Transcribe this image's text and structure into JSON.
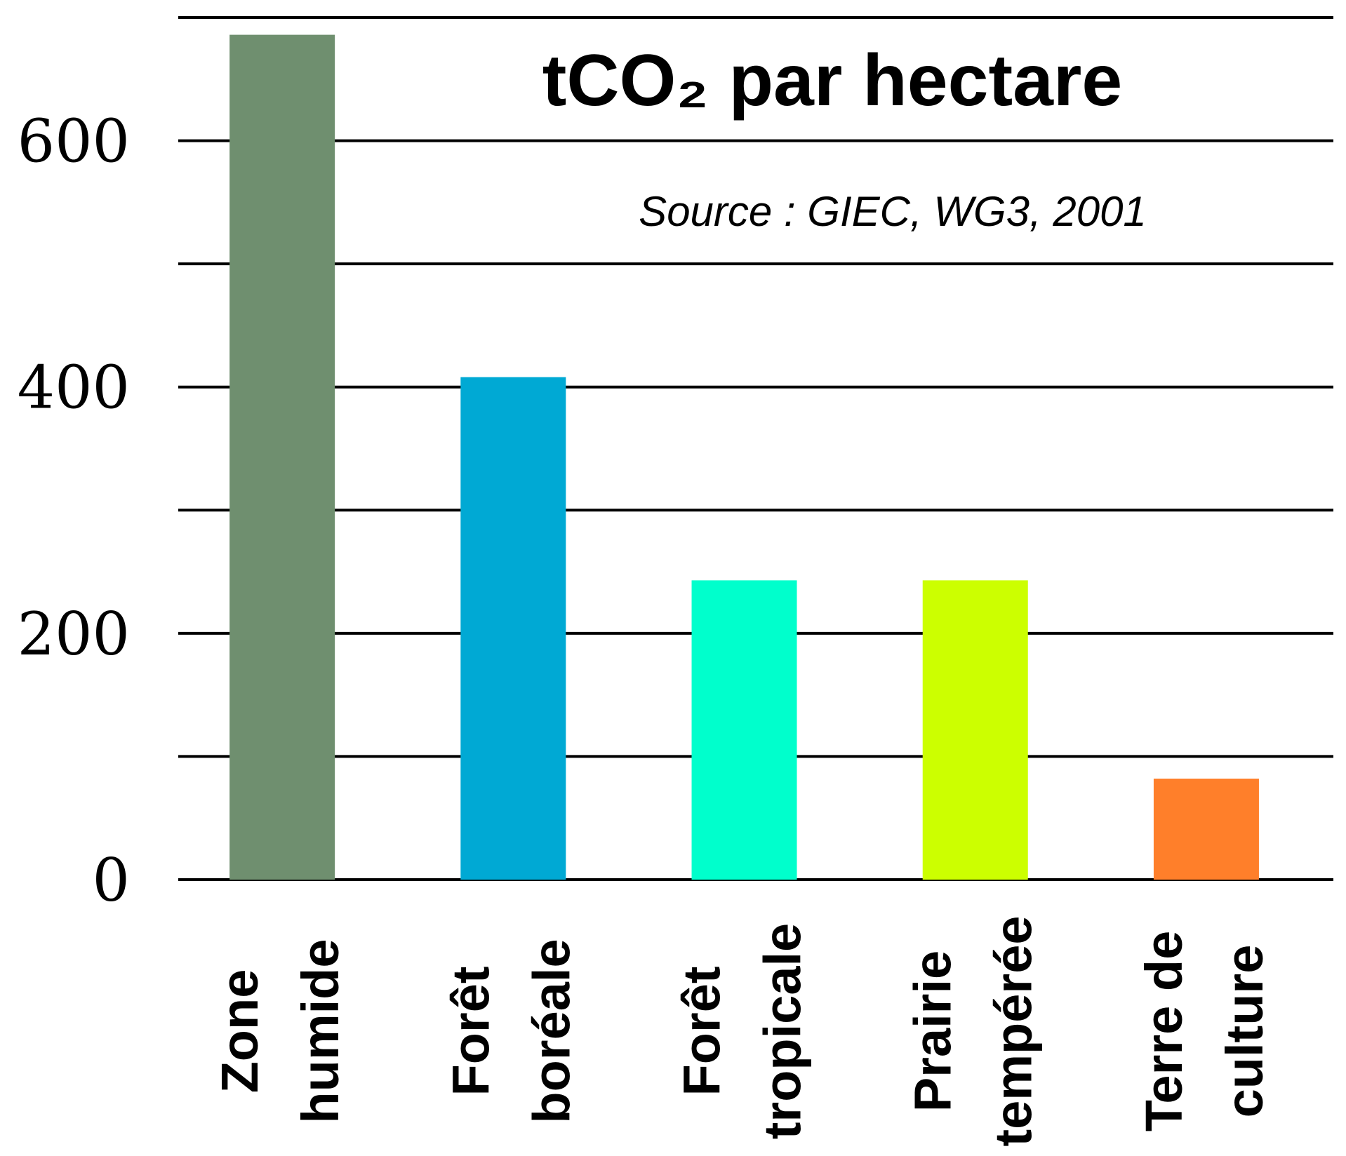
{
  "chart_data": {
    "type": "bar",
    "title": "tCO₂ par hectare",
    "subtitle": "Source : GIEC, WG3, 2001",
    "categories": [
      [
        "Zone",
        "humide"
      ],
      [
        "Forêt",
        "boréale"
      ],
      [
        "Forêt",
        "tropicale"
      ],
      [
        "Prairie",
        "tempérée"
      ],
      [
        "Terre de",
        "culture"
      ]
    ],
    "values": [
      686,
      408,
      243,
      243,
      82
    ],
    "colors": [
      "#6f8f6f",
      "#00a9d4",
      "#00ffcc",
      "#ccff00",
      "#ff7f2a"
    ],
    "ylim": [
      0,
      700
    ],
    "yticks": [
      0,
      200,
      400,
      600
    ],
    "minor_yticks": [
      100,
      300,
      500,
      700
    ],
    "grid": true
  }
}
